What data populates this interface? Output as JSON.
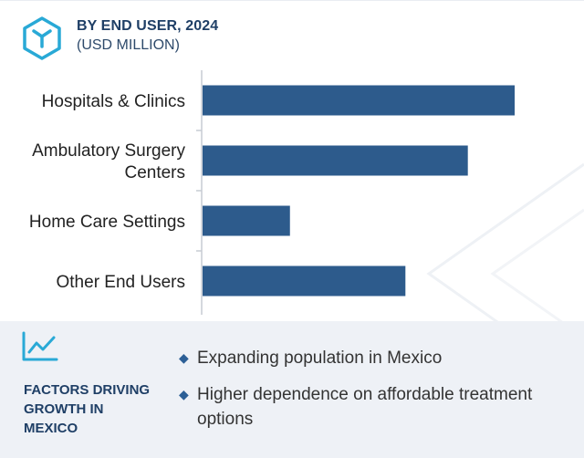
{
  "header": {
    "title": "BY END USER, 2024",
    "subtitle": "(USD MILLION)"
  },
  "colors": {
    "bar": "#2d5b8c",
    "accent": "#1f3f66",
    "panel": "#eef1f6"
  },
  "chart_data": {
    "type": "bar",
    "orientation": "horizontal",
    "categories": [
      [
        "Hospitals & Clinics"
      ],
      [
        "Ambulatory Surgery",
        "Centers"
      ],
      [
        "Home Care Settings"
      ],
      [
        "Other End Users"
      ]
    ],
    "values": [
      100,
      85,
      28,
      65
    ],
    "xlim": [
      0,
      100
    ],
    "grid": false,
    "legend": "none"
  },
  "factors": {
    "icon": "line-chart-icon",
    "title": "FACTORS DRIVING\nGROWTH IN\nMEXICO",
    "bullets": [
      "Expanding population in Mexico",
      "Higher dependence on affordable treatment options"
    ]
  }
}
